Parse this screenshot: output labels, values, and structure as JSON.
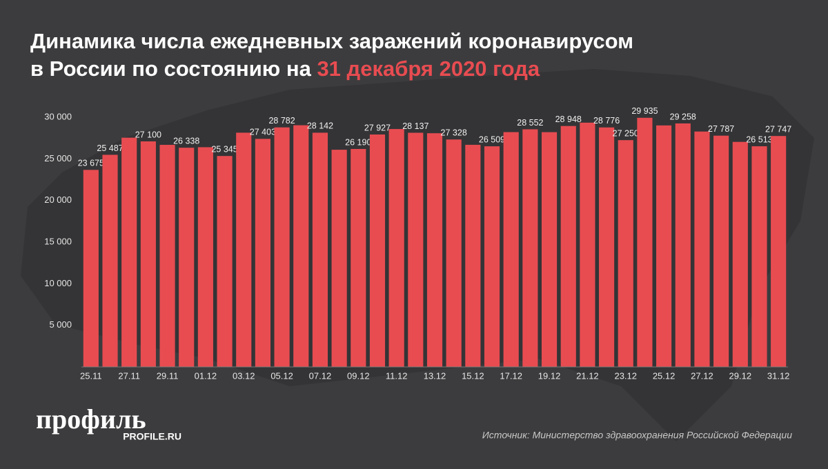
{
  "chart_data": {
    "type": "bar",
    "title": [
      "Динамика числа ежедневных заражений коронавирусом",
      "в России по состоянию на "
    ],
    "title_highlight": "31 декабря 2020 года",
    "categories": [
      "25.11",
      null,
      "27.11",
      null,
      "29.11",
      null,
      "01.12",
      null,
      "03.12",
      null,
      "05.12",
      null,
      "07.12",
      null,
      "09.12",
      null,
      "11.12",
      null,
      "13.12",
      null,
      "15.12",
      null,
      "17.12",
      null,
      "19.12",
      null,
      "21.12",
      null,
      "23.12",
      null,
      "25.12",
      null,
      "27.12",
      null,
      "29.12",
      null,
      "31.12"
    ],
    "values": [
      23675,
      25487,
      27543,
      27100,
      26683,
      26338,
      26402,
      25345,
      28145,
      27403,
      28782,
      29039,
      28142,
      26097,
      26190,
      27927,
      28585,
      28137,
      28080,
      27328,
      26689,
      26509,
      28214,
      28552,
      28209,
      28948,
      29350,
      28776,
      27250,
      29935,
      29018,
      29258,
      28284,
      27787,
      27039,
      26513,
      27747
    ],
    "value_labels": [
      "23 675",
      "25 487",
      null,
      "27 100",
      null,
      "26 338",
      null,
      "25 345",
      null,
      "27 403",
      "28 782",
      null,
      "28 142",
      null,
      "26 190",
      "27 927",
      null,
      "28 137",
      null,
      "27 328",
      null,
      "26 509",
      null,
      "28 552",
      null,
      "28 948",
      null,
      "28 776",
      "27 250",
      "29 935",
      null,
      "29 258",
      null,
      "27 787",
      null,
      "26 513",
      "27 747"
    ],
    "color": "#e84c51",
    "ylim": [
      0,
      30000
    ],
    "yticks": [
      {
        "value": 5000,
        "label": "5 000"
      },
      {
        "value": 10000,
        "label": "10 000"
      },
      {
        "value": 15000,
        "label": "15 000"
      },
      {
        "value": 20000,
        "label": "20 000"
      },
      {
        "value": 25000,
        "label": "25 000"
      },
      {
        "value": 30000,
        "label": "30 000"
      }
    ],
    "grid": false,
    "logo": "профиль",
    "logo_sub": "PROFILE.RU",
    "source": "Источник: Министерство здравоохранения Российской Федерации"
  }
}
